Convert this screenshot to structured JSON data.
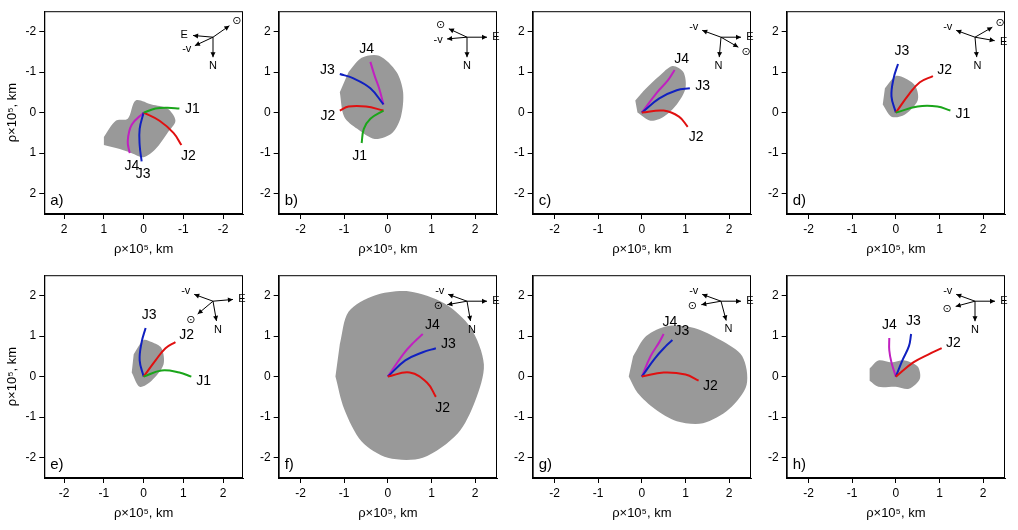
{
  "chart_data": [
    {
      "type": "line",
      "label": "a)",
      "xlabel": "ρ×10⁵, km",
      "ylabel": "ρ×10⁵, km",
      "xlim": [
        2.5,
        -2.5
      ],
      "ylim": [
        2.5,
        -2.5
      ],
      "xticks": [
        -2,
        -1,
        0,
        1,
        2
      ],
      "yticks": [
        -2,
        -1,
        0,
        1,
        2
      ],
      "grid": false,
      "series": [
        {
          "type": "area",
          "color": "#999999",
          "x": [
            1.0,
            0.7,
            0.4,
            0.2,
            -0.2,
            -0.6,
            -0.8,
            -0.6,
            -0.3,
            0.0,
            0.3,
            0.6,
            1.0
          ],
          "values": [
            0.6,
            0.2,
            0.15,
            -0.3,
            -0.2,
            -0.1,
            0.2,
            0.5,
            0.9,
            1.1,
            1.0,
            0.9,
            0.8
          ]
        },
        {
          "name": "J1",
          "color": "#1aa51a",
          "x": [
            0,
            -0.3,
            -0.6,
            -0.9
          ],
          "values": [
            0,
            -0.1,
            -0.12,
            -0.1
          ]
        },
        {
          "name": "J2",
          "color": "#e01010",
          "x": [
            0,
            -0.4,
            -0.75,
            -0.95
          ],
          "values": [
            0,
            0.2,
            0.5,
            0.8
          ]
        },
        {
          "name": "J3",
          "color": "#1020c0",
          "x": [
            0,
            0.1,
            0.1,
            0.05
          ],
          "values": [
            0,
            0.4,
            0.8,
            1.2
          ]
        },
        {
          "name": "J4",
          "color": "#c020c0",
          "x": [
            0,
            0.3,
            0.4,
            0.35
          ],
          "values": [
            0,
            0.3,
            0.7,
            1.0
          ]
        }
      ],
      "compass": [
        {
          "label": "⊙",
          "angle": 35
        },
        {
          "label": "-v",
          "angle": 205
        },
        {
          "label": "E",
          "angle": 175
        },
        {
          "label": "N",
          "angle": 270
        }
      ]
    },
    {
      "type": "line",
      "label": "b)",
      "xlabel": "ρ×10⁵, km",
      "xlim": [
        -2.5,
        2.5
      ],
      "ylim": [
        -2.5,
        2.5
      ],
      "xticks": [
        -2,
        -1,
        0,
        1,
        2
      ],
      "yticks": [
        -2,
        -1,
        0,
        1,
        2
      ],
      "grid": false,
      "series": [
        {
          "type": "area",
          "color": "#999999",
          "x": [
            -0.9,
            -0.6,
            -0.2,
            0.2,
            0.35,
            0.3,
            0.1,
            -0.3,
            -0.7,
            -1.0,
            -1.1
          ],
          "values": [
            1.0,
            1.35,
            1.4,
            1.0,
            0.5,
            -0.1,
            -0.5,
            -0.65,
            -0.4,
            -0.1,
            0.5
          ]
        },
        {
          "name": "J1",
          "color": "#1aa51a",
          "x": [
            -0.1,
            -0.4,
            -0.55,
            -0.6
          ],
          "values": [
            0.05,
            -0.15,
            -0.4,
            -0.75
          ]
        },
        {
          "name": "J2",
          "color": "#e01010",
          "x": [
            -0.1,
            -0.5,
            -0.9,
            -1.1
          ],
          "values": [
            0.05,
            0.15,
            0.15,
            0.05
          ]
        },
        {
          "name": "J3",
          "color": "#1020c0",
          "x": [
            -0.1,
            -0.4,
            -0.8,
            -1.1
          ],
          "values": [
            0.2,
            0.6,
            0.85,
            0.95
          ]
        },
        {
          "name": "J4",
          "color": "#c020c0",
          "x": [
            -0.1,
            -0.2,
            -0.3,
            -0.4
          ],
          "values": [
            0.2,
            0.6,
            0.9,
            1.25
          ]
        }
      ],
      "compass": [
        {
          "label": "⊙",
          "angle": 155
        },
        {
          "label": "-v",
          "angle": 185
        },
        {
          "label": "E",
          "angle": 0
        },
        {
          "label": "N",
          "angle": 270
        }
      ]
    },
    {
      "type": "line",
      "label": "c)",
      "xlabel": "ρ×10⁵, km",
      "xlim": [
        -2.5,
        2.5
      ],
      "ylim": [
        -2.5,
        2.5
      ],
      "xticks": [
        -2,
        -1,
        0,
        1,
        2
      ],
      "yticks": [
        -2,
        -1,
        0,
        1,
        2
      ],
      "grid": false,
      "series": [
        {
          "type": "area",
          "color": "#999999",
          "x": [
            -0.1,
            0.2,
            0.5,
            0.8,
            1.0,
            0.95,
            0.7,
            0.4,
            0.1,
            -0.15
          ],
          "values": [
            0.0,
            -0.2,
            -0.1,
            0.2,
            0.6,
            1.0,
            1.15,
            0.9,
            0.6,
            0.3
          ]
        },
        {
          "name": "J2",
          "color": "#e01010",
          "x": [
            0,
            0.5,
            0.85,
            1.05
          ],
          "values": [
            0,
            0.05,
            -0.1,
            -0.35
          ]
        },
        {
          "name": "J3",
          "color": "#1020c0",
          "x": [
            0,
            0.4,
            0.8,
            1.1
          ],
          "values": [
            0,
            0.35,
            0.55,
            0.6
          ]
        },
        {
          "name": "J4",
          "color": "#c020c0",
          "x": [
            0,
            0.35,
            0.6,
            0.75
          ],
          "values": [
            0,
            0.5,
            0.8,
            1.05
          ]
        }
      ],
      "compass": [
        {
          "label": "-v",
          "angle": 160
        },
        {
          "label": "E",
          "angle": 0
        },
        {
          "label": "N",
          "angle": 265
        },
        {
          "label": "⊙",
          "angle": 330
        }
      ]
    },
    {
      "type": "line",
      "label": "d)",
      "xlabel": "ρ×10⁵, km",
      "xlim": [
        -2.5,
        2.5
      ],
      "ylim": [
        -2.5,
        2.5
      ],
      "xticks": [
        -2,
        -1,
        0,
        1,
        2
      ],
      "yticks": [
        -2,
        -1,
        0,
        1,
        2
      ],
      "grid": false,
      "series": [
        {
          "type": "area",
          "color": "#999999",
          "x": [
            -0.3,
            -0.1,
            0.2,
            0.5,
            0.45,
            0.2,
            0.0,
            -0.25
          ],
          "values": [
            0.2,
            -0.1,
            -0.05,
            0.3,
            0.65,
            0.85,
            0.9,
            0.6
          ]
        },
        {
          "name": "J1",
          "color": "#1aa51a",
          "x": [
            0,
            0.5,
            0.95,
            1.25
          ],
          "values": [
            0,
            0.15,
            0.15,
            0.05
          ]
        },
        {
          "name": "J2",
          "color": "#e01010",
          "x": [
            0,
            0.3,
            0.55,
            0.85
          ],
          "values": [
            0,
            0.45,
            0.75,
            0.9
          ]
        },
        {
          "name": "J3",
          "color": "#1020c0",
          "x": [
            0,
            -0.1,
            -0.05,
            0.05
          ],
          "values": [
            0,
            0.4,
            0.85,
            1.2
          ]
        }
      ],
      "compass": [
        {
          "label": "-v",
          "angle": 160
        },
        {
          "label": "E",
          "angle": 350
        },
        {
          "label": "⊙",
          "angle": 30
        },
        {
          "label": "N",
          "angle": 275
        }
      ]
    },
    {
      "type": "line",
      "label": "e)",
      "xlabel": "ρ×10⁵, km",
      "ylabel": "ρ×10⁵, km",
      "xlim": [
        -2.5,
        2.5
      ],
      "ylim": [
        -2.5,
        2.5
      ],
      "xticks": [
        -2,
        -1,
        0,
        1,
        2
      ],
      "yticks": [
        -2,
        -1,
        0,
        1,
        2
      ],
      "grid": false,
      "series": [
        {
          "type": "area",
          "color": "#999999",
          "x": [
            -0.3,
            -0.1,
            0.2,
            0.5,
            0.45,
            0.2,
            0.0,
            -0.25
          ],
          "values": [
            0.1,
            -0.25,
            -0.1,
            0.3,
            0.7,
            0.85,
            0.9,
            0.55
          ]
        },
        {
          "name": "J1",
          "color": "#1aa51a",
          "x": [
            0,
            0.45,
            0.9,
            1.2
          ],
          "values": [
            0,
            0.15,
            0.1,
            0.0
          ]
        },
        {
          "name": "J2",
          "color": "#e01010",
          "x": [
            0,
            0.3,
            0.55,
            0.8
          ],
          "values": [
            0,
            0.4,
            0.7,
            0.85
          ]
        },
        {
          "name": "J3",
          "color": "#1020c0",
          "x": [
            0,
            -0.1,
            -0.05,
            0.05
          ],
          "values": [
            0,
            0.4,
            0.85,
            1.2
          ]
        }
      ],
      "compass": [
        {
          "label": "-v",
          "angle": 160
        },
        {
          "label": "E",
          "angle": 5
        },
        {
          "label": "⊙",
          "angle": 220
        },
        {
          "label": "N",
          "angle": 280
        }
      ]
    },
    {
      "type": "line",
      "label": "f)",
      "xlabel": "ρ×10⁵, km",
      "xlim": [
        -2.5,
        2.5
      ],
      "ylim": [
        -2.5,
        2.5
      ],
      "xticks": [
        -2,
        -1,
        0,
        1,
        2
      ],
      "yticks": [
        -2,
        -1,
        0,
        1,
        2
      ],
      "grid": false,
      "series": [
        {
          "type": "area",
          "color": "#999999",
          "x": [
            -1.1,
            -0.9,
            -0.3,
            0.5,
            1.3,
            1.9,
            2.2,
            2.0,
            1.6,
            0.8,
            0.0,
            -0.6,
            -1.0,
            -1.2
          ],
          "values": [
            0.8,
            1.6,
            2.0,
            2.1,
            1.8,
            1.2,
            0.3,
            -0.6,
            -1.4,
            -2.0,
            -2.0,
            -1.6,
            -0.8,
            0.0
          ]
        },
        {
          "name": "J2",
          "color": "#e01010",
          "x": [
            0,
            0.5,
            0.9,
            1.1
          ],
          "values": [
            0,
            0.1,
            -0.15,
            -0.5
          ]
        },
        {
          "name": "J3",
          "color": "#1020c0",
          "x": [
            0,
            0.4,
            0.8,
            1.1
          ],
          "values": [
            0,
            0.4,
            0.6,
            0.7
          ]
        },
        {
          "name": "J4",
          "color": "#c020c0",
          "x": [
            0,
            0.35,
            0.6,
            0.8
          ],
          "values": [
            0,
            0.55,
            0.85,
            1.05
          ]
        }
      ],
      "compass": [
        {
          "label": "-v",
          "angle": 160
        },
        {
          "label": "⊙",
          "angle": 190
        },
        {
          "label": "E",
          "angle": 0
        },
        {
          "label": "N",
          "angle": 280
        }
      ]
    },
    {
      "type": "line",
      "label": "g)",
      "xlabel": "ρ×10⁵, km",
      "xlim": [
        -2.5,
        2.5
      ],
      "ylim": [
        -2.5,
        2.5
      ],
      "xticks": [
        -2,
        -1,
        0,
        1,
        2
      ],
      "yticks": [
        -2,
        -1,
        0,
        1,
        2
      ],
      "grid": false,
      "series": [
        {
          "type": "area",
          "color": "#999999",
          "x": [
            -0.2,
            0.1,
            0.6,
            1.2,
            1.8,
            2.3,
            2.4,
            2.0,
            1.4,
            0.8,
            0.3,
            -0.1,
            -0.3
          ],
          "values": [
            0.5,
            1.0,
            1.25,
            1.2,
            0.9,
            0.5,
            -0.2,
            -0.8,
            -1.15,
            -1.1,
            -0.8,
            -0.4,
            0.0
          ]
        },
        {
          "name": "J2",
          "color": "#e01010",
          "x": [
            0,
            0.5,
            1.0,
            1.3
          ],
          "values": [
            0,
            0.1,
            0.05,
            -0.1
          ]
        },
        {
          "name": "J3",
          "color": "#1020c0",
          "x": [
            0,
            0.3,
            0.55,
            0.7
          ],
          "values": [
            0,
            0.45,
            0.75,
            0.9
          ]
        },
        {
          "name": "J4",
          "color": "#c020c0",
          "x": [
            0,
            0.2,
            0.4,
            0.5
          ],
          "values": [
            0,
            0.5,
            0.85,
            1.05
          ]
        }
      ],
      "compass": [
        {
          "label": "-v",
          "angle": 160
        },
        {
          "label": "⊙",
          "angle": 190
        },
        {
          "label": "E",
          "angle": 0
        },
        {
          "label": "N",
          "angle": 285
        }
      ]
    },
    {
      "type": "line",
      "label": "h)",
      "xlabel": "ρ×10⁵, km",
      "xlim": [
        -2.5,
        2.5
      ],
      "ylim": [
        -2.5,
        2.5
      ],
      "xticks": [
        -2,
        -1,
        0,
        1,
        2
      ],
      "yticks": [
        -2,
        -1,
        0,
        1,
        2
      ],
      "grid": false,
      "series": [
        {
          "type": "area",
          "color": "#999999",
          "x": [
            -0.6,
            -0.4,
            -0.1,
            0.2,
            0.5,
            0.55,
            0.3,
            0.0,
            -0.4,
            -0.6
          ],
          "values": [
            0.2,
            0.4,
            0.35,
            0.4,
            0.25,
            -0.05,
            -0.3,
            -0.25,
            -0.25,
            -0.1
          ]
        },
        {
          "name": "J2",
          "color": "#e01010",
          "x": [
            0,
            0.4,
            0.75,
            1.05
          ],
          "values": [
            0,
            0.35,
            0.55,
            0.7
          ]
        },
        {
          "name": "J3",
          "color": "#1020c0",
          "x": [
            0,
            0.15,
            0.3,
            0.35
          ],
          "values": [
            0,
            0.4,
            0.75,
            1.05
          ]
        },
        {
          "name": "J4",
          "color": "#c020c0",
          "x": [
            0,
            -0.1,
            -0.15,
            -0.15
          ],
          "values": [
            0,
            0.35,
            0.65,
            0.95
          ]
        }
      ],
      "compass": [
        {
          "label": "-v",
          "angle": 160
        },
        {
          "label": "⊙",
          "angle": 195
        },
        {
          "label": "E",
          "angle": 0
        },
        {
          "label": "N",
          "angle": 270
        }
      ]
    }
  ]
}
